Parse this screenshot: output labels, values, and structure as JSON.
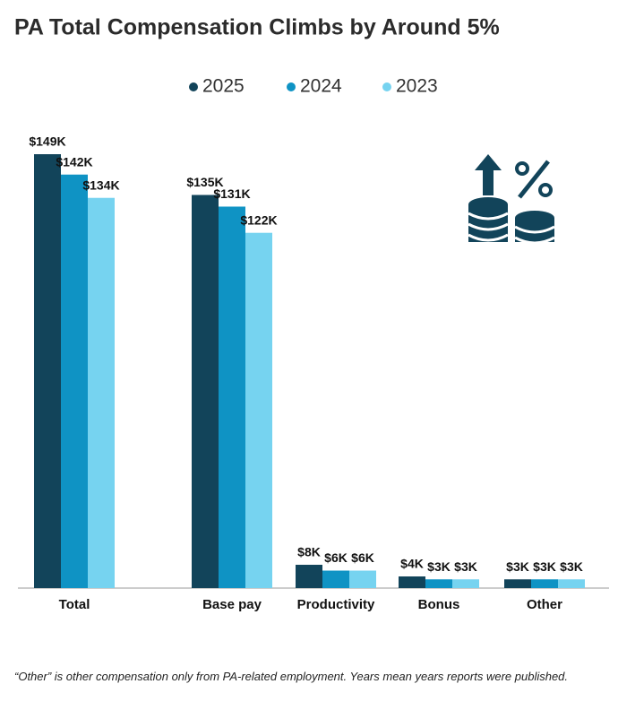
{
  "chart_data": {
    "type": "bar",
    "title": "PA Total Compensation Climbs by Around 5%",
    "categories": [
      "Total",
      "Base pay",
      "Productivity",
      "Bonus",
      "Other"
    ],
    "series": [
      {
        "name": "2025",
        "color": "#12445a",
        "values": [
          149,
          135,
          8,
          4,
          3
        ],
        "value_labels": [
          "$149K",
          "$135K",
          "$8K",
          "$4K",
          "$3K"
        ]
      },
      {
        "name": "2024",
        "color": "#0f93c4",
        "values": [
          142,
          131,
          6,
          3,
          3
        ],
        "value_labels": [
          "$142K",
          "$131K",
          "$6K",
          "$3K",
          "$3K"
        ]
      },
      {
        "name": "2023",
        "color": "#76d3f0",
        "values": [
          134,
          122,
          6,
          3,
          3
        ],
        "value_labels": [
          "$134K",
          "$122K",
          "$6K",
          "$3K",
          "$3K"
        ]
      }
    ],
    "footnote": "“Other” is other compensation only from PA-related employment. Years mean years reports were published."
  }
}
